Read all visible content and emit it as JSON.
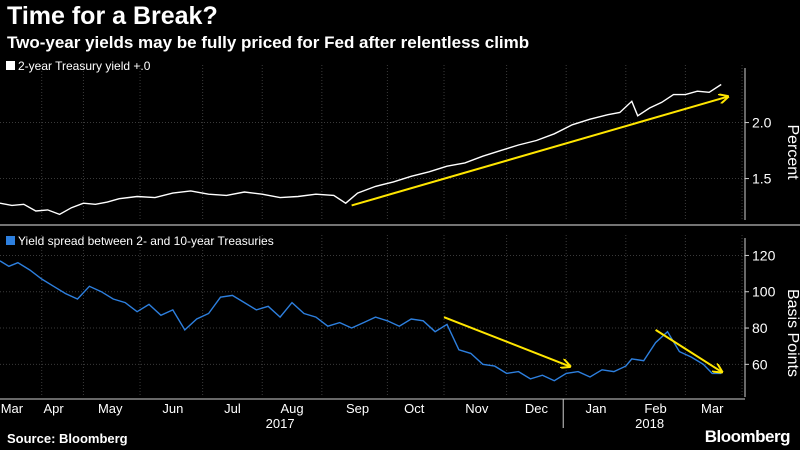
{
  "header": {
    "title": "Time for a Break?",
    "subtitle": "Two-year yields may be fully priced for Fed after relentless climb"
  },
  "footer": {
    "source": "Source: Bloomberg",
    "brand": "Bloomberg"
  },
  "colors": {
    "background": "#000000",
    "yield_line": "#ffffff",
    "spread_line": "#2d7fde",
    "arrow": "#ffe600",
    "grid": "#3a3a3a",
    "axis_text": "#ffffff"
  },
  "chart_data": [
    {
      "type": "line",
      "title": "",
      "legend": "2-year Treasury yield +.0",
      "ylabel": "Percent",
      "ylim": [
        1.13,
        2.38
      ],
      "yticks": [
        1.5,
        2.0
      ],
      "ytick_labels": [
        "1.5",
        "2.0"
      ],
      "xlim": [
        0,
        12.5
      ],
      "grid": true,
      "x": [
        0,
        0.2,
        0.4,
        0.6,
        0.8,
        1.0,
        1.2,
        1.4,
        1.6,
        1.8,
        2.0,
        2.3,
        2.6,
        2.9,
        3.2,
        3.5,
        3.8,
        4.1,
        4.4,
        4.7,
        5.0,
        5.3,
        5.6,
        5.8,
        6.0,
        6.3,
        6.6,
        6.9,
        7.2,
        7.5,
        7.8,
        8.1,
        8.4,
        8.7,
        9.0,
        9.3,
        9.6,
        9.9,
        10.2,
        10.4,
        10.6,
        10.7,
        10.9,
        11.1,
        11.3,
        11.5,
        11.7,
        11.9,
        12.1
      ],
      "values": [
        1.28,
        1.26,
        1.27,
        1.21,
        1.22,
        1.18,
        1.24,
        1.28,
        1.27,
        1.29,
        1.32,
        1.34,
        1.33,
        1.37,
        1.39,
        1.36,
        1.35,
        1.38,
        1.36,
        1.33,
        1.34,
        1.36,
        1.35,
        1.28,
        1.37,
        1.43,
        1.47,
        1.52,
        1.56,
        1.61,
        1.64,
        1.7,
        1.75,
        1.8,
        1.84,
        1.9,
        1.98,
        2.03,
        2.07,
        2.09,
        2.19,
        2.06,
        2.13,
        2.18,
        2.25,
        2.25,
        2.28,
        2.27,
        2.34
      ],
      "annotations": [
        {
          "type": "arrow",
          "from": [
            5.9,
            1.26
          ],
          "to": [
            12.2,
            2.23
          ]
        }
      ]
    },
    {
      "type": "line",
      "title": "",
      "legend": "Yield spread between 2- and 10-year Treasuries",
      "ylabel": "Basis Points",
      "ylim": [
        42,
        123
      ],
      "yticks": [
        60,
        80,
        100,
        120
      ],
      "ytick_labels": [
        "60",
        "80",
        "100",
        "120"
      ],
      "xlim": [
        0,
        12.5
      ],
      "grid": true,
      "categories": [
        "Mar",
        "Apr",
        "May",
        "Jun",
        "Jul",
        "Aug",
        "Sep",
        "Oct",
        "Nov",
        "Dec",
        "Jan",
        "Feb",
        "Mar"
      ],
      "category_positions": [
        0.2,
        0.9,
        1.85,
        2.9,
        3.9,
        4.9,
        6.0,
        6.95,
        8.0,
        9.0,
        10.0,
        11.0,
        11.95
      ],
      "year_labels": [
        {
          "label": "2017",
          "at": 4.7
        },
        {
          "label": "2018",
          "at": 10.9
        }
      ],
      "x": [
        0,
        0.15,
        0.3,
        0.5,
        0.7,
        0.9,
        1.1,
        1.3,
        1.5,
        1.7,
        1.9,
        2.1,
        2.3,
        2.5,
        2.7,
        2.9,
        3.1,
        3.3,
        3.5,
        3.7,
        3.9,
        4.1,
        4.3,
        4.5,
        4.7,
        4.9,
        5.1,
        5.3,
        5.5,
        5.7,
        5.9,
        6.1,
        6.3,
        6.5,
        6.7,
        6.9,
        7.1,
        7.3,
        7.5,
        7.7,
        7.9,
        8.1,
        8.3,
        8.5,
        8.7,
        8.9,
        9.1,
        9.3,
        9.5,
        9.7,
        9.9,
        10.1,
        10.3,
        10.5,
        10.6,
        10.8,
        11.0,
        11.2,
        11.4,
        11.6,
        11.8,
        11.95,
        12.1
      ],
      "values": [
        117,
        114,
        116,
        112,
        107,
        103,
        99,
        96,
        103,
        100,
        96,
        94,
        89,
        93,
        87,
        90,
        79,
        85,
        88,
        97,
        98,
        94,
        90,
        92,
        86,
        94,
        88,
        86,
        81,
        83,
        80,
        83,
        86,
        84,
        81,
        85,
        84,
        78,
        82,
        68,
        66,
        60,
        59,
        55,
        56,
        52,
        54,
        51,
        55,
        56,
        53,
        57,
        56,
        59,
        63,
        62,
        72,
        78,
        67,
        64,
        60,
        55,
        55
      ],
      "annotations": [
        {
          "type": "arrow",
          "from": [
            7.45,
            86
          ],
          "to": [
            9.55,
            59
          ]
        },
        {
          "type": "arrow",
          "from": [
            11.0,
            79
          ],
          "to": [
            12.1,
            56
          ]
        }
      ]
    }
  ]
}
